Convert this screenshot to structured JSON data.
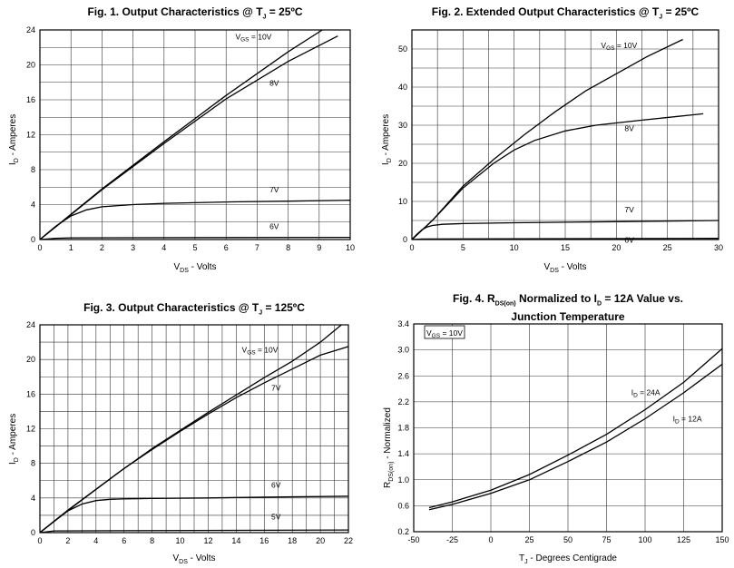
{
  "chart_data": [
    {
      "id": "fig1",
      "type": "line",
      "title_pre": "Fig. 1. Output Characteristics @ T",
      "title_sub": "J",
      "title_post": " = 25ºC",
      "ylabel_main": "I",
      "ylabel_sub": "D",
      "ylabel_post": " - Amperes",
      "xlabel_main": "V",
      "xlabel_sub": "DS",
      "xlabel_post": " - Volts",
      "xlim": [
        0,
        10
      ],
      "ylim": [
        0,
        24
      ],
      "xticks": [
        0,
        1,
        2,
        3,
        4,
        5,
        6,
        7,
        8,
        9,
        10
      ],
      "yticks": [
        0,
        4,
        8,
        12,
        16,
        20,
        24
      ],
      "vgrid": [
        0,
        1,
        2,
        3,
        4,
        5,
        6,
        7,
        8,
        9,
        10
      ],
      "hgrid": [
        0,
        2,
        4,
        6,
        8,
        10,
        12,
        14,
        16,
        18,
        20,
        22,
        24
      ],
      "series": [
        {
          "name": "VGS = 10V",
          "x": [
            0,
            1,
            2,
            4,
            6,
            8,
            9.1
          ],
          "y": [
            0,
            2.9,
            5.8,
            11.2,
            16.5,
            21.5,
            24
          ]
        },
        {
          "name": "8V",
          "x": [
            0,
            1,
            2,
            4,
            6,
            8,
            9.6
          ],
          "y": [
            0,
            2.85,
            5.7,
            11.0,
            16.1,
            20.4,
            23.3
          ]
        },
        {
          "name": "7V",
          "x": [
            0,
            0.5,
            1,
            1.5,
            2,
            3,
            4,
            6,
            8,
            10
          ],
          "y": [
            0,
            1.5,
            2.7,
            3.4,
            3.75,
            4.0,
            4.15,
            4.3,
            4.4,
            4.5
          ]
        },
        {
          "name": "6V",
          "x": [
            0,
            0.5,
            1,
            10
          ],
          "y": [
            0,
            0.15,
            0.2,
            0.25
          ]
        }
      ],
      "labels": [
        {
          "main": "V",
          "sub": "GS",
          "post": " = 10V",
          "x": 6.3,
          "y": 22.9
        },
        {
          "main": "8V",
          "sub": "",
          "post": "",
          "x": 7.4,
          "y": 17.6
        },
        {
          "main": "7V",
          "sub": "",
          "post": "",
          "x": 7.4,
          "y": 5.4
        },
        {
          "main": "6V",
          "sub": "",
          "post": "",
          "x": 7.4,
          "y": 1.2
        }
      ]
    },
    {
      "id": "fig2",
      "type": "line",
      "title_pre": "Fig. 2. Extended Output Characteristics @ T",
      "title_sub": "J",
      "title_post": " = 25ºC",
      "ylabel_main": "I",
      "ylabel_sub": "D",
      "ylabel_post": " - Amperes",
      "xlabel_main": "V",
      "xlabel_sub": "DS",
      "xlabel_post": " - Volts",
      "xlim": [
        0,
        30
      ],
      "ylim": [
        0,
        55
      ],
      "xticks": [
        0,
        5,
        10,
        15,
        20,
        25,
        30
      ],
      "yticks": [
        0,
        10,
        20,
        30,
        40,
        50
      ],
      "vgrid": [
        0,
        2.5,
        5,
        7.5,
        10,
        12.5,
        15,
        17.5,
        20,
        22.5,
        25,
        27.5,
        30
      ],
      "hgrid": [
        0,
        5,
        10,
        15,
        20,
        25,
        30,
        35,
        40,
        45,
        50,
        55
      ],
      "series": [
        {
          "name": "VGS = 10V",
          "x": [
            0,
            2,
            5,
            8,
            11,
            14,
            17,
            20,
            23,
            26.5
          ],
          "y": [
            0,
            5,
            14,
            21,
            27.5,
            33.5,
            39,
            43.5,
            48,
            52.5
          ]
        },
        {
          "name": "8V",
          "x": [
            0,
            2,
            5,
            8,
            10,
            12,
            15,
            18,
            22,
            26,
            28.5
          ],
          "y": [
            0,
            5,
            13.5,
            20,
            23.5,
            26,
            28.5,
            30,
            31.2,
            32.3,
            33
          ]
        },
        {
          "name": "7V",
          "x": [
            0,
            0.5,
            1,
            1.5,
            2,
            3,
            5,
            10,
            20,
            30
          ],
          "y": [
            0,
            1.4,
            2.6,
            3.3,
            3.7,
            4.0,
            4.2,
            4.4,
            4.7,
            5.0
          ]
        },
        {
          "name": "6V",
          "x": [
            0,
            1,
            30
          ],
          "y": [
            0,
            0.15,
            0.3
          ]
        }
      ],
      "labels": [
        {
          "main": "V",
          "sub": "GS",
          "post": " = 10V",
          "x": 18.5,
          "y": 50.2
        },
        {
          "main": "8V",
          "sub": "",
          "post": "",
          "x": 20.8,
          "y": 28.5
        },
        {
          "main": "7V",
          "sub": "",
          "post": "",
          "x": 20.8,
          "y": 7.2
        },
        {
          "main": "6V",
          "sub": "",
          "post": "",
          "x": 20.8,
          "y": -0.8
        }
      ]
    },
    {
      "id": "fig3",
      "type": "line",
      "title_pre": "Fig. 3. Output Characteristics @ T",
      "title_sub": "J",
      "title_post": " = 125ºC",
      "ylabel_main": "I",
      "ylabel_sub": "D",
      "ylabel_post": " - Amperes",
      "xlabel_main": "V",
      "xlabel_sub": "DS",
      "xlabel_post": " - Volts",
      "xlim": [
        0,
        22
      ],
      "ylim": [
        0,
        24
      ],
      "xticks": [
        0,
        2,
        4,
        6,
        8,
        10,
        12,
        14,
        16,
        18,
        20,
        22
      ],
      "yticks": [
        0,
        4,
        8,
        12,
        16,
        20,
        24
      ],
      "vgrid": [
        0,
        1,
        2,
        3,
        4,
        5,
        6,
        7,
        8,
        9,
        10,
        11,
        12,
        13,
        14,
        15,
        16,
        17,
        18,
        19,
        20,
        21,
        22
      ],
      "hgrid": [
        0,
        2,
        4,
        6,
        8,
        10,
        12,
        14,
        16,
        18,
        20,
        22,
        24
      ],
      "series": [
        {
          "name": "VGS = 10V",
          "x": [
            0,
            2,
            4,
            6,
            8,
            10,
            12,
            14,
            16,
            18,
            20,
            21.5
          ],
          "y": [
            0,
            2.6,
            5.0,
            7.4,
            9.7,
            11.8,
            13.9,
            15.9,
            17.9,
            19.8,
            22.0,
            24
          ]
        },
        {
          "name": "7V",
          "x": [
            0,
            2,
            4,
            6,
            8,
            10,
            12,
            14,
            16,
            18,
            20,
            22
          ],
          "y": [
            0,
            2.55,
            5.0,
            7.4,
            9.6,
            11.7,
            13.7,
            15.6,
            17.3,
            18.9,
            20.5,
            21.5
          ]
        },
        {
          "name": "6V",
          "x": [
            0,
            1,
            2,
            3,
            4,
            5,
            6,
            8,
            12,
            16,
            22
          ],
          "y": [
            0,
            1.3,
            2.5,
            3.3,
            3.7,
            3.85,
            3.9,
            3.95,
            4.0,
            4.1,
            4.2
          ]
        },
        {
          "name": "5V",
          "x": [
            0,
            1,
            22
          ],
          "y": [
            0,
            0.2,
            0.3
          ]
        }
      ],
      "labels": [
        {
          "main": "V",
          "sub": "GS",
          "post": " = 10V",
          "x": 14.4,
          "y": 20.8
        },
        {
          "main": "7V",
          "sub": "",
          "post": "",
          "x": 16.5,
          "y": 16.4
        },
        {
          "main": "6V",
          "sub": "",
          "post": "",
          "x": 16.5,
          "y": 5.2
        },
        {
          "main": "5V",
          "sub": "",
          "post": "",
          "x": 16.5,
          "y": 1.5
        }
      ]
    },
    {
      "id": "fig4",
      "type": "line",
      "title_pre": "Fig. 4. R",
      "title_sub": "DS(on)",
      "title_post": " Normalized to I",
      "title_sub2": "D",
      "title_post2": " = 12A Value vs.",
      "title_line2": "Junction Temperature",
      "ylabel_main": "R",
      "ylabel_sub": "DS(on)",
      "ylabel_post": " - Normalized",
      "xlabel_main": "T",
      "xlabel_sub": "J",
      "xlabel_post": " - Degrees Centigrade",
      "xlim": [
        -50,
        150
      ],
      "ylim": [
        0.2,
        3.4
      ],
      "xticks": [
        -50,
        -25,
        0,
        25,
        50,
        75,
        100,
        125,
        150
      ],
      "yticks": [
        0.2,
        0.6,
        1.0,
        1.4,
        1.8,
        2.2,
        2.6,
        3.0,
        3.4
      ],
      "ytick_labels": [
        "0.2",
        "0.6",
        "1.0",
        "1.4",
        "1.8",
        "2.2",
        "2.6",
        "3.0",
        "3.4"
      ],
      "vgrid": [
        -50,
        -25,
        0,
        25,
        50,
        75,
        100,
        125,
        150
      ],
      "hgrid": [
        0.2,
        0.6,
        1.0,
        1.4,
        1.8,
        2.2,
        2.6,
        3.0,
        3.4
      ],
      "series": [
        {
          "name": "ID = 24A",
          "x": [
            -40,
            -25,
            0,
            25,
            50,
            75,
            100,
            125,
            150
          ],
          "y": [
            0.57,
            0.66,
            0.84,
            1.08,
            1.38,
            1.7,
            2.08,
            2.5,
            3.02
          ]
        },
        {
          "name": "ID = 12A",
          "x": [
            -40,
            -25,
            0,
            25,
            50,
            75,
            100,
            125,
            150
          ],
          "y": [
            0.54,
            0.62,
            0.79,
            1.0,
            1.28,
            1.58,
            1.94,
            2.34,
            2.78
          ]
        }
      ],
      "labels": [
        {
          "main": "I",
          "sub": "D",
          "post": " = 24A",
          "x": 91,
          "y": 2.3
        },
        {
          "main": "I",
          "sub": "D",
          "post": " = 12A",
          "x": 118,
          "y": 1.9
        }
      ],
      "boxlabel": {
        "main": "V",
        "sub": "GS",
        "post": " = 10V"
      }
    }
  ]
}
